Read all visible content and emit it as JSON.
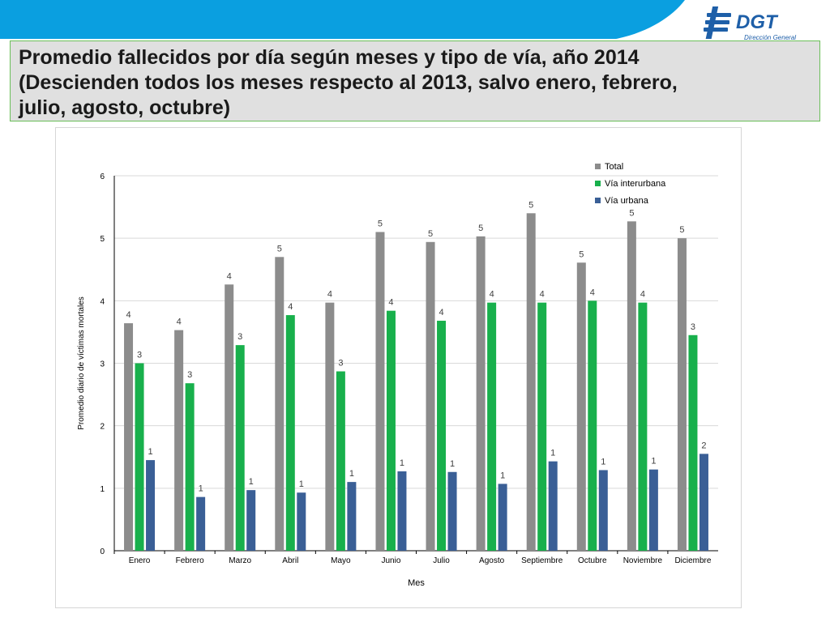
{
  "header": {
    "title_lines": [
      "Promedio fallecidos por día según meses y tipo de vía, año 2014",
      "(Descienden todos los meses respecto al 2013, salvo enero, febrero,",
      "julio, agosto, octubre)"
    ],
    "logo": {
      "name": "DGT",
      "subtitle": "Dirección General"
    }
  },
  "colors": {
    "band_blue": "#0a9fe0",
    "logo_blue": "#1e5fa8",
    "total": "#8c8c8c",
    "interurbana": "#18b04c",
    "urbana": "#3a5f96"
  },
  "chart_data": {
    "type": "bar",
    "ylabel": "Promedio diario de víctimas mortales",
    "xlabel": "Mes",
    "ylim": [
      0,
      6
    ],
    "yticks": [
      0,
      1,
      2,
      3,
      4,
      5,
      6
    ],
    "legend_position": "top-right",
    "categories": [
      "Enero",
      "Febrero",
      "Marzo",
      "Abril",
      "Mayo",
      "Junio",
      "Julio",
      "Agosto",
      "Septiembre",
      "Octubre",
      "Noviembre",
      "Diciembre"
    ],
    "series": [
      {
        "name": "Total",
        "values": [
          3.64,
          3.53,
          4.26,
          4.7,
          3.97,
          5.1,
          4.94,
          5.03,
          5.4,
          4.61,
          5.27,
          5.0
        ],
        "labels": [
          "4",
          "4",
          "4",
          "5",
          "4",
          "5",
          "5",
          "5",
          "5",
          "5",
          "5",
          "5"
        ]
      },
      {
        "name": "Vía interurbana",
        "values": [
          3.0,
          2.68,
          3.29,
          3.77,
          2.87,
          3.84,
          3.68,
          3.97,
          3.97,
          4.0,
          3.97,
          3.45
        ],
        "labels": [
          "3",
          "3",
          "3",
          "4",
          "3",
          "4",
          "4",
          "4",
          "4",
          "4",
          "4",
          "3"
        ]
      },
      {
        "name": "Vía urbana",
        "values": [
          1.45,
          0.86,
          0.97,
          0.93,
          1.1,
          1.27,
          1.26,
          1.07,
          1.43,
          1.29,
          1.3,
          1.55
        ],
        "labels": [
          "1",
          "1",
          "1",
          "1",
          "1",
          "1",
          "1",
          "1",
          "1",
          "1",
          "1",
          "2"
        ]
      }
    ]
  }
}
